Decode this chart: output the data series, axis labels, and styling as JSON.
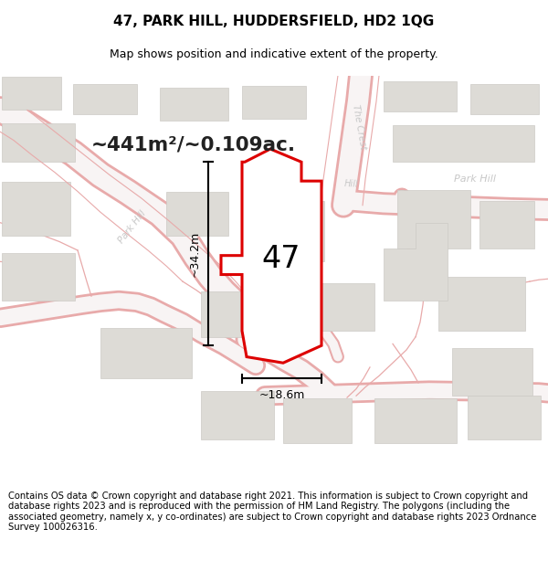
{
  "title": "47, PARK HILL, HUDDERSFIELD, HD2 1QG",
  "subtitle": "Map shows position and indicative extent of the property.",
  "area_text": "~441m²/~0.109ac.",
  "label_47": "47",
  "dim_vertical": "~34.2m",
  "dim_horizontal": "~18.6m",
  "footer": "Contains OS data © Crown copyright and database right 2021. This information is subject to Crown copyright and database rights 2023 and is reproduced with the permission of HM Land Registry. The polygons (including the associated geometry, namely x, y co-ordinates) are subject to Crown copyright and database rights 2023 Ordnance Survey 100026316.",
  "bg_color": "#ffffff",
  "road_outline_color": "#e8aaaa",
  "road_fill_color": "#f5e8e8",
  "building_color": "#dddbd6",
  "building_edge_color": "#cccac5",
  "title_fontsize": 11,
  "subtitle_fontsize": 9,
  "footer_fontsize": 7.2,
  "label_color": "#c8c8c8",
  "poly_red": "#dd0000",
  "poly_fill": "#f5f5f5"
}
